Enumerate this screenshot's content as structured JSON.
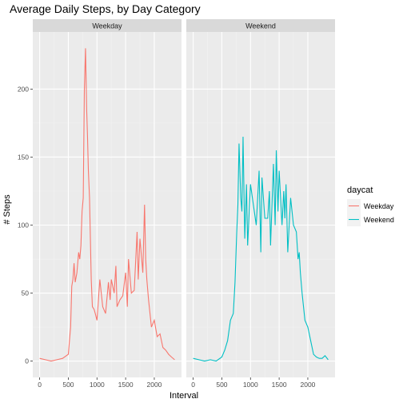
{
  "chart_data": {
    "type": "line",
    "title": "Average Daily Steps, by Day Category",
    "xlabel": "Interval",
    "ylabel": "# Steps",
    "xlim": [
      -120,
      2475
    ],
    "ylim": [
      -12,
      242
    ],
    "x_ticks": [
      0,
      500,
      1000,
      1500,
      2000
    ],
    "y_ticks": [
      0,
      50,
      100,
      150,
      200
    ],
    "grid": true,
    "legend": {
      "title": "daycat",
      "position": "right"
    },
    "panels": [
      {
        "label": "Weekday",
        "series_name": "Weekday",
        "color": "#F8766D",
        "x": [
          0,
          100,
          200,
          300,
          400,
          500,
          540,
          560,
          580,
          600,
          620,
          650,
          680,
          700,
          720,
          740,
          760,
          780,
          800,
          820,
          835,
          850,
          870,
          900,
          920,
          950,
          970,
          1000,
          1050,
          1100,
          1150,
          1200,
          1230,
          1250,
          1300,
          1330,
          1350,
          1400,
          1450,
          1500,
          1530,
          1550,
          1600,
          1650,
          1700,
          1720,
          1750,
          1800,
          1830,
          1850,
          1870,
          1900,
          1950,
          2000,
          2050,
          2100,
          2150,
          2200,
          2250,
          2300,
          2355
        ],
        "y": [
          2,
          1,
          0,
          1,
          2,
          5,
          25,
          55,
          60,
          72,
          58,
          65,
          80,
          75,
          85,
          110,
          120,
          200,
          230,
          185,
          165,
          140,
          120,
          60,
          40,
          38,
          35,
          30,
          60,
          40,
          35,
          58,
          45,
          60,
          50,
          70,
          40,
          45,
          48,
          65,
          40,
          75,
          50,
          52,
          95,
          60,
          90,
          65,
          115,
          75,
          60,
          45,
          25,
          30,
          18,
          20,
          10,
          8,
          5,
          3,
          1
        ]
      },
      {
        "label": "Weekend",
        "series_name": "Weekend",
        "color": "#00BFC4",
        "x": [
          0,
          100,
          200,
          300,
          400,
          500,
          550,
          600,
          650,
          700,
          730,
          760,
          780,
          800,
          830,
          850,
          870,
          900,
          930,
          950,
          1000,
          1050,
          1100,
          1150,
          1180,
          1200,
          1250,
          1300,
          1330,
          1350,
          1400,
          1430,
          1450,
          1480,
          1500,
          1550,
          1580,
          1600,
          1620,
          1650,
          1700,
          1750,
          1800,
          1830,
          1850,
          1870,
          1900,
          1950,
          2000,
          2050,
          2100,
          2150,
          2200,
          2250,
          2300,
          2355
        ],
        "y": [
          2,
          1,
          0,
          1,
          0,
          3,
          8,
          15,
          30,
          35,
          58,
          95,
          115,
          160,
          120,
          110,
          165,
          90,
          130,
          85,
          130,
          115,
          100,
          140,
          80,
          135,
          105,
          105,
          125,
          85,
          145,
          100,
          155,
          110,
          140,
          100,
          125,
          105,
          130,
          80,
          120,
          100,
          95,
          75,
          80,
          65,
          50,
          30,
          25,
          15,
          5,
          3,
          2,
          2,
          4,
          1
        ]
      }
    ]
  }
}
